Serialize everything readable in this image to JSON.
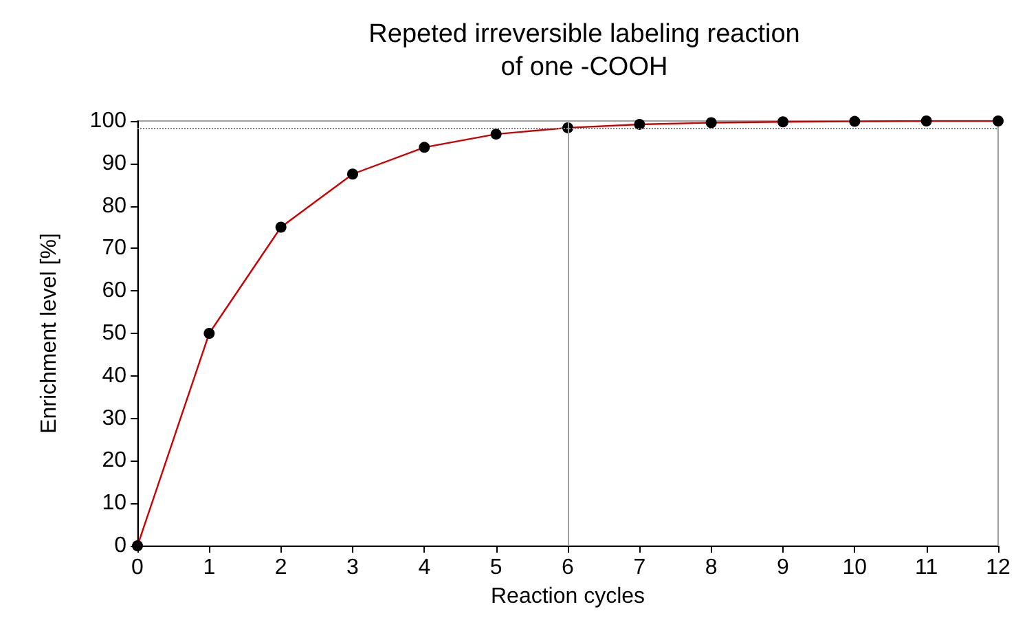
{
  "chart_data": {
    "type": "line",
    "title": "Repeted irreversible labeling reaction\nof one -COOH",
    "xlabel": "Reaction cycles",
    "ylabel": "Enrichment level [%]",
    "x": [
      0,
      1,
      2,
      3,
      4,
      5,
      6,
      7,
      8,
      9,
      10,
      11,
      12
    ],
    "series": [
      {
        "color": "#cc0000",
        "values": [
          0,
          50,
          75,
          87.5,
          93.8,
          96.9,
          98.4,
          99.2,
          99.6,
          99.8,
          99.9,
          100,
          100
        ]
      }
    ],
    "xlim": [
      0,
      12
    ],
    "xticks": [
      0,
      1,
      2,
      3,
      4,
      5,
      6,
      7,
      8,
      9,
      10,
      11,
      12
    ],
    "ylim": [
      0,
      100
    ],
    "yticks": [
      0,
      10,
      20,
      30,
      40,
      50,
      60,
      70,
      80,
      90,
      100
    ],
    "ref_lines": [
      {
        "axis": "y",
        "value": 98.4,
        "color": "#808080",
        "line_style": "dotted"
      },
      {
        "axis": "x",
        "value": 6,
        "color": "#a0a0a0",
        "line_style": "solid"
      }
    ],
    "marker": "circle",
    "line_style": "solid",
    "grid": false
  }
}
